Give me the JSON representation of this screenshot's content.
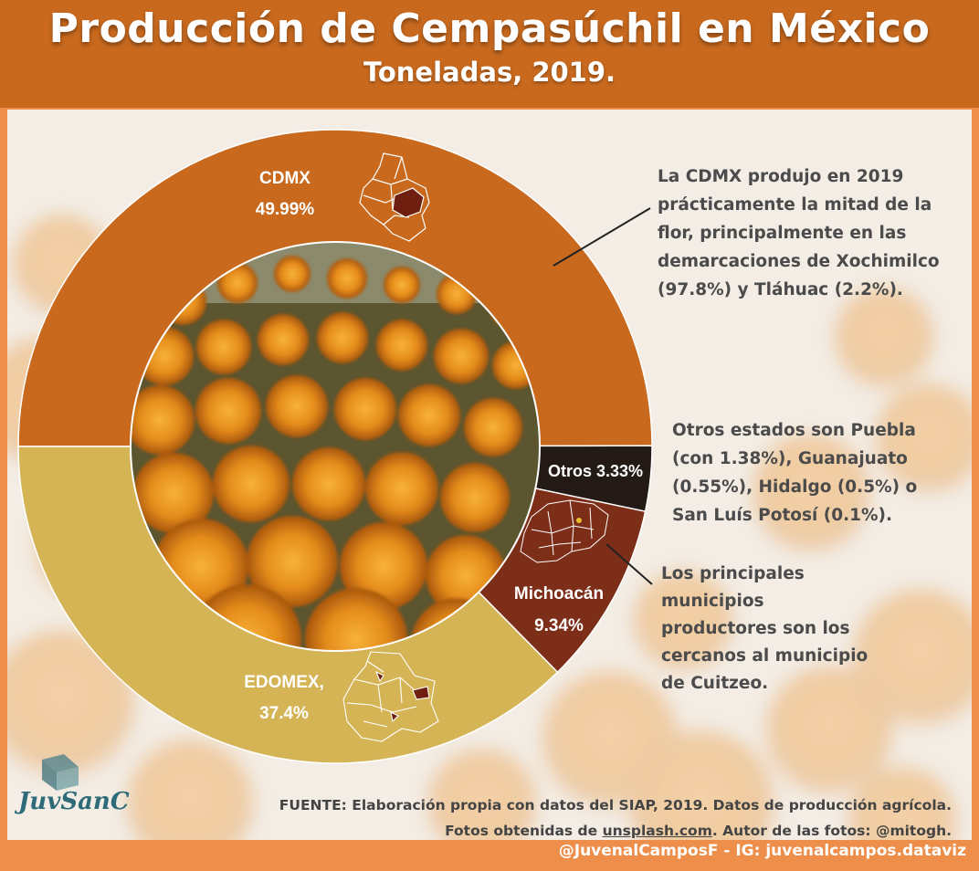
{
  "header": {
    "title": "Producción de Cempasúchil en México",
    "subtitle": "Toneladas, 2019."
  },
  "chart_data": {
    "type": "pie",
    "variant": "donut",
    "categories": [
      "CDMX",
      "Otros",
      "Michoacán",
      "EDOMEX,"
    ],
    "values": [
      49.99,
      3.33,
      9.34,
      37.4
    ],
    "labels": [
      "49.99%",
      "3.33%",
      "9.34%",
      "37.4%"
    ],
    "colors": [
      "#c8691e",
      "#231a16",
      "#7d2e18",
      "#d4b455"
    ],
    "start": "9 o'clock, clockwise"
  },
  "annotations": {
    "cdmx": [
      "La CDMX produjo en 2019",
      "prácticamente la mitad de la",
      "flor, principalmente en las",
      "demarcaciones de Xochimilco",
      "(97.8%) y Tláhuac (2.2%)."
    ],
    "otros": [
      "Otros estados son Puebla",
      "(con 1.38%), Guanajuato",
      "(0.55%), Hidalgo (0.5%) o",
      "San Luís Potosí (0.1%)."
    ],
    "michoacan": [
      "Los principales",
      "municipios",
      "productores son los",
      "cercanos al municipio",
      "de Cuitzeo."
    ]
  },
  "source": {
    "line1": "FUENTE: Elaboración propia con datos del SIAP, 2019. Datos de producción agrícola.",
    "line2_prefix": "Fotos obtenidas de ",
    "line2_link": "unsplash.com",
    "line2_suffix": ". Autor de las fotos: @mitogh."
  },
  "footer": {
    "credit": "@JuvenalCamposF - IG: juvenalcampos.dataviz"
  },
  "logo": {
    "text": "JuvSanC"
  },
  "icons": {
    "cdmx_map": "cdmx-map-icon",
    "edomex_map": "edomex-map-icon",
    "michoacan_map": "michoacan-map-icon"
  }
}
